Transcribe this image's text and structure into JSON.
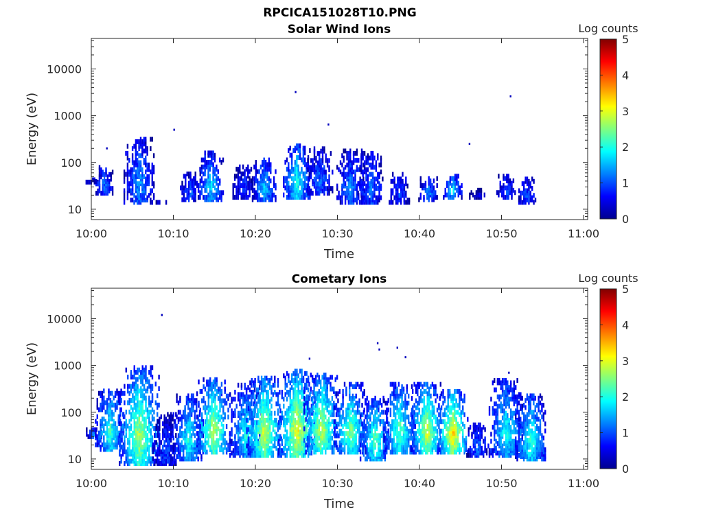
{
  "figure_title": "RPCICA151028T10.PNG",
  "chart_data": [
    {
      "type": "heatmap",
      "title": "Solar Wind Ions",
      "xlabel": "Time",
      "ylabel": "Energy (eV)",
      "x_ticks": [
        "10:00",
        "10:10",
        "10:20",
        "10:30",
        "10:40",
        "10:50",
        "11:00"
      ],
      "x_range_minutes": [
        0,
        60.5
      ],
      "y_scale": "log",
      "y_ticks": [
        "10",
        "100",
        "1000",
        "10000"
      ],
      "y_range": [
        6,
        45000
      ],
      "colorbar": {
        "label": "Log counts",
        "ticks": [
          "0",
          "1",
          "2",
          "3",
          "4",
          "5"
        ],
        "range": [
          0,
          5
        ],
        "colormap": "jet"
      },
      "bursts": [
        {
          "t": 0.2,
          "emin": 38,
          "emax": 45,
          "peak": 0.6
        },
        {
          "t": 1.5,
          "emin": 22,
          "emax": 80,
          "peak": 1.2
        },
        {
          "t": 5.8,
          "emin": 14,
          "emax": 350,
          "peak": 1.4
        },
        {
          "t": 8.5,
          "emin": 14,
          "emax": 14,
          "peak": 0.4
        },
        {
          "t": 12.0,
          "emin": 16,
          "emax": 60,
          "peak": 1.0
        },
        {
          "t": 14.5,
          "emin": 16,
          "emax": 160,
          "peak": 1.8
        },
        {
          "t": 18.5,
          "emin": 18,
          "emax": 90,
          "peak": 0.8
        },
        {
          "t": 21.0,
          "emin": 16,
          "emax": 120,
          "peak": 1.7
        },
        {
          "t": 25.0,
          "emin": 18,
          "emax": 250,
          "peak": 2.1
        },
        {
          "t": 27.8,
          "emin": 22,
          "emax": 200,
          "peak": 1.2
        },
        {
          "t": 31.5,
          "emin": 14,
          "emax": 180,
          "peak": 1.3
        },
        {
          "t": 34.0,
          "emin": 14,
          "emax": 160,
          "peak": 1.2
        },
        {
          "t": 37.5,
          "emin": 14,
          "emax": 60,
          "peak": 1.0
        },
        {
          "t": 41.0,
          "emin": 16,
          "emax": 50,
          "peak": 1.4
        },
        {
          "t": 44.0,
          "emin": 18,
          "emax": 55,
          "peak": 1.9
        },
        {
          "t": 47.0,
          "emin": 18,
          "emax": 28,
          "peak": 0.4
        },
        {
          "t": 50.5,
          "emin": 18,
          "emax": 55,
          "peak": 1.0
        },
        {
          "t": 53.0,
          "emin": 14,
          "emax": 45,
          "peak": 1.0
        }
      ],
      "isolated_points": [
        {
          "t": 1.8,
          "e": 200
        },
        {
          "t": 10.0,
          "e": 500
        },
        {
          "t": 24.8,
          "e": 3200
        },
        {
          "t": 28.8,
          "e": 650
        },
        {
          "t": 51.0,
          "e": 2600
        },
        {
          "t": 46.0,
          "e": 250
        }
      ]
    },
    {
      "type": "heatmap",
      "title": "Cometary Ions",
      "xlabel": "Time",
      "ylabel": "Energy (eV)",
      "x_ticks": [
        "10:00",
        "10:10",
        "10:20",
        "10:30",
        "10:40",
        "10:50",
        "11:00"
      ],
      "x_range_minutes": [
        0,
        60.5
      ],
      "y_scale": "log",
      "y_ticks": [
        "10",
        "100",
        "1000",
        "10000"
      ],
      "y_range": [
        6,
        45000
      ],
      "colorbar": {
        "label": "Log counts",
        "ticks": [
          "0",
          "1",
          "2",
          "3",
          "4",
          "5"
        ],
        "range": [
          0,
          5
        ],
        "colormap": "jet"
      },
      "bursts": [
        {
          "t": 0.3,
          "emin": 30,
          "emax": 45,
          "peak": 1.5
        },
        {
          "t": 2.2,
          "emin": 16,
          "emax": 300,
          "peak": 2.2
        },
        {
          "t": 5.8,
          "emin": 8,
          "emax": 900,
          "peak": 2.8
        },
        {
          "t": 9.0,
          "emin": 8,
          "emax": 90,
          "peak": 1.0
        },
        {
          "t": 11.8,
          "emin": 10,
          "emax": 250,
          "peak": 2.0
        },
        {
          "t": 14.8,
          "emin": 14,
          "emax": 500,
          "peak": 2.9
        },
        {
          "t": 18.8,
          "emin": 12,
          "emax": 400,
          "peak": 2.0
        },
        {
          "t": 21.0,
          "emin": 12,
          "emax": 600,
          "peak": 3.0
        },
        {
          "t": 25.0,
          "emin": 12,
          "emax": 800,
          "peak": 3.2
        },
        {
          "t": 28.0,
          "emin": 14,
          "emax": 700,
          "peak": 2.9
        },
        {
          "t": 31.5,
          "emin": 14,
          "emax": 400,
          "peak": 2.6
        },
        {
          "t": 34.5,
          "emin": 10,
          "emax": 200,
          "peak": 2.4
        },
        {
          "t": 37.5,
          "emin": 14,
          "emax": 400,
          "peak": 2.4
        },
        {
          "t": 40.8,
          "emin": 14,
          "emax": 400,
          "peak": 3.0
        },
        {
          "t": 44.0,
          "emin": 14,
          "emax": 300,
          "peak": 3.4
        },
        {
          "t": 47.0,
          "emin": 12,
          "emax": 60,
          "peak": 1.2
        },
        {
          "t": 50.5,
          "emin": 12,
          "emax": 500,
          "peak": 2.0
        },
        {
          "t": 53.5,
          "emin": 10,
          "emax": 250,
          "peak": 2.2
        }
      ],
      "isolated_points": [
        {
          "t": 8.5,
          "e": 12000
        },
        {
          "t": 26.5,
          "e": 1400
        },
        {
          "t": 34.8,
          "e": 3000
        },
        {
          "t": 35.0,
          "e": 2200
        },
        {
          "t": 37.2,
          "e": 2400
        },
        {
          "t": 38.2,
          "e": 1500
        },
        {
          "t": 50.8,
          "e": 700
        }
      ]
    }
  ]
}
